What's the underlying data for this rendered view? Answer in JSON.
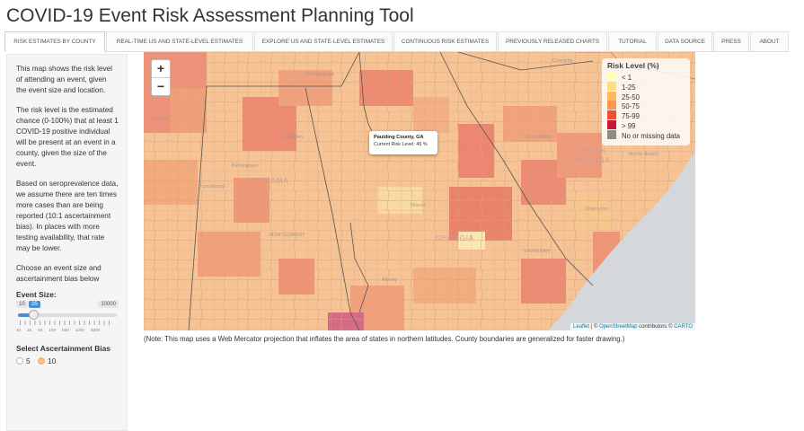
{
  "app": {
    "title": "COVID-19 Event Risk Assessment Planning Tool"
  },
  "tabs": [
    {
      "label": "RISK ESTIMATES BY COUNTY",
      "active": true
    },
    {
      "label": "REAL-TIME US AND STATE-LEVEL ESTIMATES",
      "active": false
    },
    {
      "label": "EXPLORE US AND STATE-LEVEL ESTIMATES",
      "active": false
    },
    {
      "label": "CONTINUOUS RISK ESTIMATES",
      "active": false
    },
    {
      "label": "PREVIOUSLY RELEASED CHARTS",
      "active": false
    },
    {
      "label": "TUTORIAL",
      "active": false
    },
    {
      "label": "DATA SOURCE",
      "active": false
    },
    {
      "label": "PRESS",
      "active": false
    },
    {
      "label": "ABOUT",
      "active": false
    }
  ],
  "sidebar": {
    "intro": "This map shows the risk level of attending an event, given the event size and location.",
    "risk_def": "The risk level is the estimated chance (0-100%) that at least 1 COVID-19 positive individual will be present at an event in a county, given the size of the event.",
    "bias_text": "Based on seroprevalence data, we assume there are ten times more cases than are being reported (10:1 ascertainment bias). In places with more testing availability, that rate may be lower.",
    "choose_text": "Choose an event size and ascertainment bias below",
    "event_size": {
      "label": "Event Size:",
      "min": "10",
      "value": "25",
      "max": "10000",
      "tick_labels": [
        "10",
        "25",
        "50",
        "100",
        "500",
        "1000",
        "5000"
      ]
    },
    "bias": {
      "label": "Select Ascertainment Bias",
      "options": [
        {
          "label": "5",
          "selected": false
        },
        {
          "label": "10",
          "selected": true
        }
      ]
    }
  },
  "map": {
    "zoom_in": "+",
    "zoom_out": "−",
    "popup": {
      "county": "Paulding County, GA",
      "risk_text": "Current Risk Level: 46 %"
    },
    "legend": {
      "title": "Risk Level (%)",
      "items": [
        {
          "label": "< 1",
          "color": "#ffffb2"
        },
        {
          "label": "1-25",
          "color": "#fed976"
        },
        {
          "label": "25-50",
          "color": "#feb24c"
        },
        {
          "label": "50-75",
          "color": "#fd8d3c"
        },
        {
          "label": "75-99",
          "color": "#f03b20"
        },
        {
          "label": "> 99",
          "color": "#bd0026"
        },
        {
          "label": "No or missing data",
          "color": "#808080"
        }
      ]
    },
    "attribution": {
      "leaflet": "Leaflet",
      "osm": "OpenStreetMap",
      "contributors": "contributors",
      "carto": "CARTO"
    },
    "place_labels": {
      "tupelo": "Tupelo",
      "chattanooga": "Chattanooga",
      "charlotte": "Charlotte",
      "gadsden": "Gadsden",
      "birmingham": "Birmingham",
      "tuscaloosa": "Tuscaloosa",
      "alabama": "ALABAMA",
      "montgomery": "MONTGOMERY",
      "georgia": "GEORGIA",
      "macon": "Macon",
      "columbia": "COLUMBIA",
      "south_carolina_1": "SOUTH",
      "south_carolina_2": "CAROLINA",
      "myrtle_beach": "Myrtle Beach",
      "charleston": "Charleston",
      "savannah": "SAVANNAH",
      "albany": "Albany"
    }
  },
  "note": "(Note: This map uses a Web Mercator projection that inflates the area of states in northern latitudes. County boundaries are generalized for faster drawing.)"
}
